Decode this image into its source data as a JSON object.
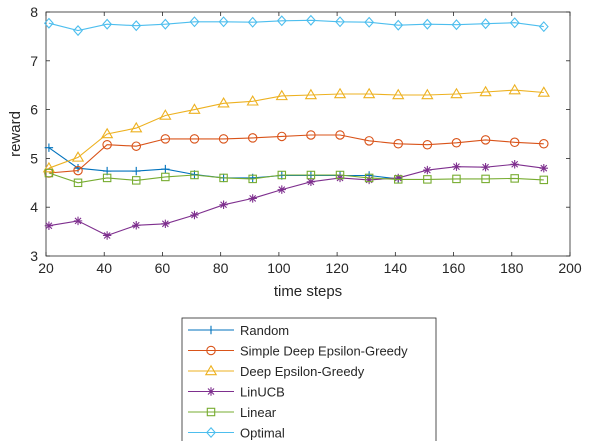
{
  "chart_data": {
    "type": "line",
    "title": "",
    "xlabel": "time steps",
    "ylabel": "reward",
    "xlim": [
      20,
      200
    ],
    "ylim": [
      3,
      8
    ],
    "xticks": [
      20,
      40,
      60,
      80,
      100,
      120,
      140,
      160,
      180,
      200
    ],
    "yticks": [
      3,
      4,
      5,
      6,
      7,
      8
    ],
    "grid": false,
    "legend_position": "below",
    "x": [
      21,
      31,
      41,
      51,
      61,
      71,
      81,
      91,
      101,
      111,
      121,
      131,
      141,
      151,
      161,
      171,
      181,
      191
    ],
    "series": [
      {
        "name": "Random",
        "color": "#0072BD",
        "marker": "plus",
        "values": [
          5.22,
          4.8,
          4.74,
          4.74,
          4.78,
          4.67,
          4.6,
          4.6,
          4.65,
          4.65,
          4.65,
          4.65,
          4.58,
          null,
          null,
          null,
          null,
          null
        ]
      },
      {
        "name": "Simple Deep Epsilon-Greedy",
        "color": "#D95319",
        "marker": "circle",
        "values": [
          4.7,
          4.75,
          5.28,
          5.25,
          5.4,
          5.4,
          5.4,
          5.42,
          5.45,
          5.48,
          5.48,
          5.36,
          5.3,
          5.28,
          5.32,
          5.38,
          5.33,
          5.3
        ]
      },
      {
        "name": "Deep Epsilon-Greedy",
        "color": "#EDB120",
        "marker": "triangle",
        "values": [
          4.8,
          5.02,
          5.5,
          5.62,
          5.88,
          6.0,
          6.13,
          6.17,
          6.28,
          6.3,
          6.32,
          6.32,
          6.3,
          6.3,
          6.32,
          6.36,
          6.4,
          6.35
        ]
      },
      {
        "name": "LinUCB",
        "color": "#7E2F8E",
        "marker": "star",
        "values": [
          3.62,
          3.72,
          3.42,
          3.63,
          3.66,
          3.84,
          4.05,
          4.18,
          4.36,
          4.52,
          4.6,
          4.56,
          4.6,
          4.76,
          4.83,
          4.82,
          4.88,
          4.8
        ]
      },
      {
        "name": "Linear",
        "color": "#77AC30",
        "marker": "square",
        "values": [
          4.7,
          4.5,
          4.6,
          4.55,
          4.62,
          4.66,
          4.6,
          4.58,
          4.66,
          4.66,
          4.66,
          4.6,
          4.57,
          4.57,
          4.58,
          4.58,
          4.59,
          4.56
        ]
      },
      {
        "name": "Optimal",
        "color": "#4DBEEE",
        "marker": "diamond",
        "values": [
          7.77,
          7.62,
          7.75,
          7.72,
          7.75,
          7.8,
          7.8,
          7.79,
          7.82,
          7.83,
          7.8,
          7.79,
          7.73,
          7.75,
          7.74,
          7.76,
          7.78,
          7.7
        ]
      }
    ]
  }
}
